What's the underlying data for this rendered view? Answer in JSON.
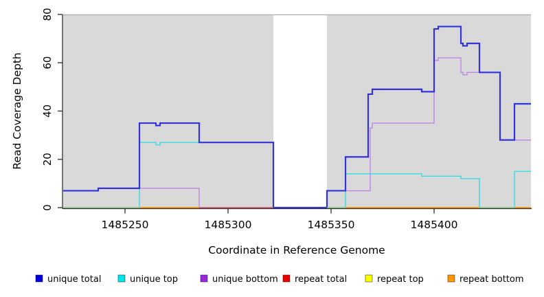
{
  "chart_data": {
    "type": "line",
    "subtype": "step-coverage-plot",
    "title": "",
    "xlabel": "Coordinate in Reference Genome",
    "ylabel": "Read Coverage Depth",
    "xlim": [
      1485220,
      1485447
    ],
    "ylim": [
      0,
      80
    ],
    "grid": "off",
    "x_tick_values": [
      1485250,
      1485300,
      1485350,
      1485400
    ],
    "x_tick_labels": [
      "1485250",
      "1485300",
      "1485350",
      "1485400"
    ],
    "y_tick_values": [
      0,
      20,
      40,
      60,
      80
    ],
    "y_tick_labels": [
      "0",
      "20",
      "40",
      "60",
      "80"
    ],
    "background_band_color": "#d9d9d9",
    "background_band_regions": [
      [
        1485220,
        1485322
      ],
      [
        1485348,
        1485447
      ]
    ],
    "uncovered_gap_region": [
      1485322,
      1485348
    ],
    "band_top_edge_color": "#adadad",
    "axis_color": "#2b2b2b",
    "series": [
      {
        "name": "repeat total",
        "line_color": "#e00000",
        "swatch_color": "#ee0000",
        "width": 1.4,
        "points": [
          [
            1485220,
            0
          ]
        ]
      },
      {
        "name": "repeat top",
        "line_color": "#f2f200",
        "swatch_color": "#ffff00",
        "width": 1.4,
        "points": [
          [
            1485220,
            0
          ]
        ]
      },
      {
        "name": "repeat bottom",
        "line_color": "#ff9100",
        "swatch_color": "#ff9700",
        "width": 1.4,
        "points": [
          [
            1485220,
            0
          ]
        ]
      },
      {
        "name": "unique bottom",
        "line_color": "#bd84e8",
        "swatch_color": "#9728dc",
        "width": 1.4,
        "points": [
          [
            1485220,
            7
          ],
          [
            1485237,
            8
          ],
          [
            1485286,
            0
          ],
          [
            1485348,
            7
          ],
          [
            1485369,
            33
          ],
          [
            1485370,
            35
          ],
          [
            1485400,
            61
          ],
          [
            1485402,
            62
          ],
          [
            1485413,
            56
          ],
          [
            1485414,
            55
          ],
          [
            1485416,
            56
          ],
          [
            1485432,
            28
          ]
        ]
      },
      {
        "name": "unique top",
        "line_color": "#35dbe6",
        "swatch_color": "#00e5ee",
        "width": 1.4,
        "points": [
          [
            1485220,
            0
          ],
          [
            1485257,
            27
          ],
          [
            1485265,
            26
          ],
          [
            1485267,
            27
          ],
          [
            1485322,
            0
          ],
          [
            1485357,
            14
          ],
          [
            1485394,
            13
          ],
          [
            1485413,
            12
          ],
          [
            1485422,
            0
          ],
          [
            1485439,
            15
          ]
        ]
      },
      {
        "name": "unique total",
        "line_color": "#3232dc",
        "swatch_color": "#0000e1",
        "width": 2.2,
        "points": [
          [
            1485220,
            7
          ],
          [
            1485237,
            8
          ],
          [
            1485257,
            35
          ],
          [
            1485265,
            34
          ],
          [
            1485267,
            35
          ],
          [
            1485286,
            27
          ],
          [
            1485322,
            0
          ],
          [
            1485348,
            7
          ],
          [
            1485357,
            21
          ],
          [
            1485368,
            47
          ],
          [
            1485370,
            49
          ],
          [
            1485394,
            48
          ],
          [
            1485400,
            74
          ],
          [
            1485402,
            75
          ],
          [
            1485413,
            68
          ],
          [
            1485414,
            67
          ],
          [
            1485416,
            68
          ],
          [
            1485422,
            56
          ],
          [
            1485432,
            28
          ],
          [
            1485439,
            43
          ]
        ]
      }
    ],
    "baseline_blend_segments": [
      {
        "from": 1485220,
        "to": 1485257,
        "color": "#8fcf8f"
      },
      {
        "from": 1485286,
        "to": 1485322,
        "color": "#d2577a"
      },
      {
        "from": 1485348,
        "to": 1485357,
        "color": "#8fcf8f"
      },
      {
        "from": 1485422,
        "to": 1485439,
        "color": "#8fcf8f"
      }
    ],
    "legend_position": "bottom",
    "legend": [
      {
        "label": "unique total",
        "color": "#0000e1"
      },
      {
        "label": "unique top",
        "color": "#00e5ee"
      },
      {
        "label": "unique bottom",
        "color": "#9728dc"
      },
      {
        "label": "repeat total",
        "color": "#ee0000"
      },
      {
        "label": "repeat top",
        "color": "#ffff00"
      },
      {
        "label": "repeat bottom",
        "color": "#ff9700"
      }
    ]
  }
}
